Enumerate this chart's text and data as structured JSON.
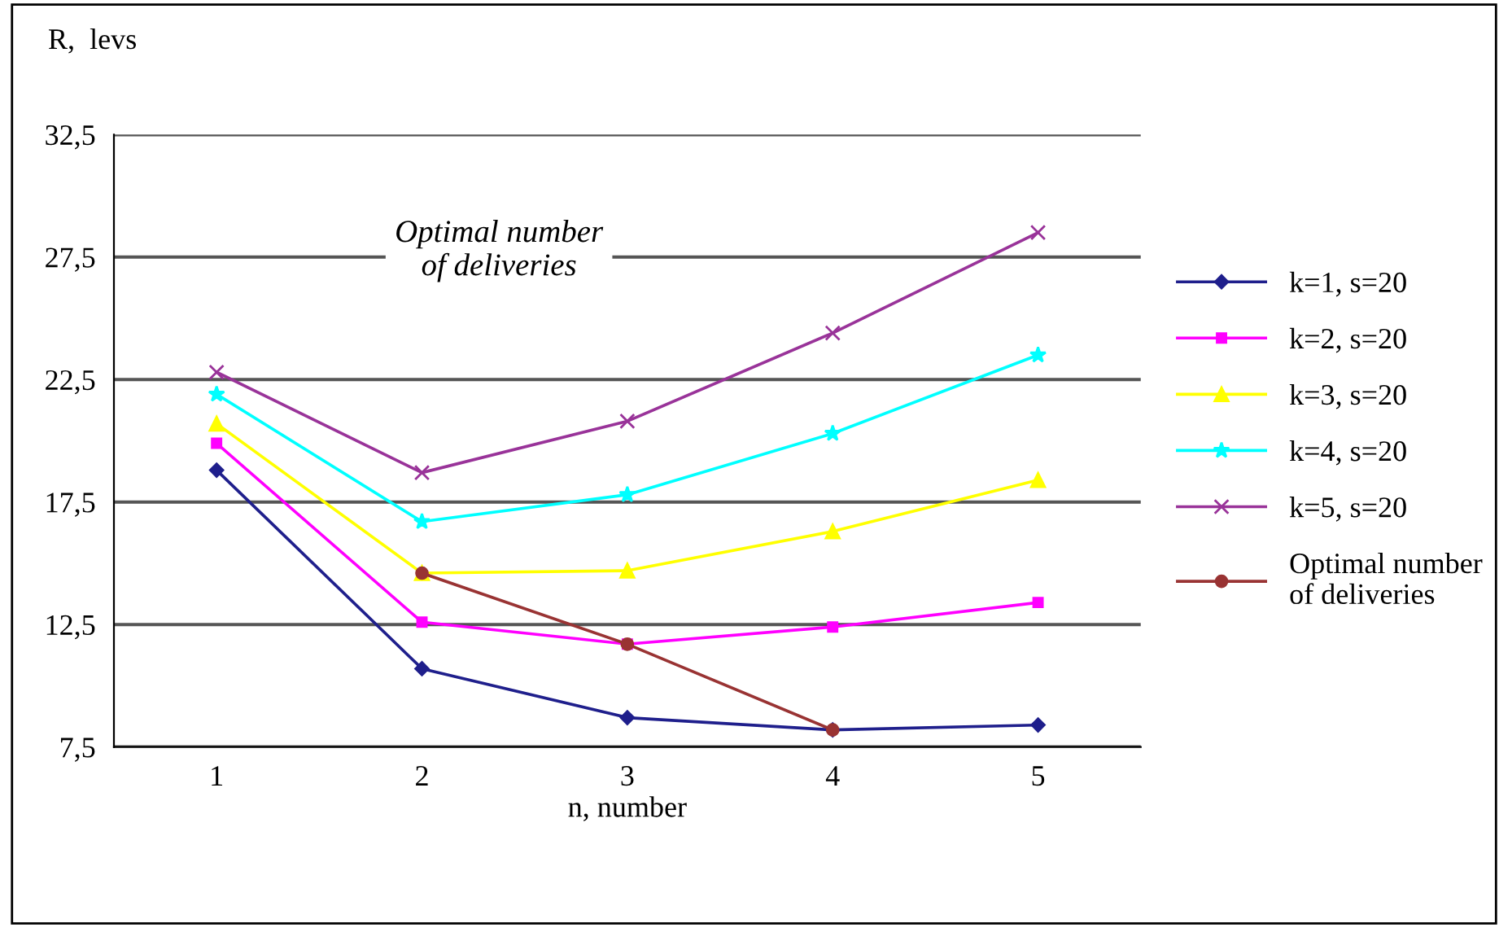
{
  "chart_data": {
    "type": "line",
    "xlabel": "n, number",
    "ylabel": "R,  levs",
    "categories": [
      "1",
      "2",
      "3",
      "4",
      "5"
    ],
    "series": [
      {
        "name": "k=1, s=20",
        "color": "#1f1f8c",
        "marker": "diamond",
        "values": [
          18.8,
          10.7,
          8.7,
          8.2,
          8.4
        ]
      },
      {
        "name": "k=2, s=20",
        "color": "#ff00ff",
        "marker": "square",
        "values": [
          19.9,
          12.6,
          11.7,
          12.4,
          13.4
        ]
      },
      {
        "name": "k=3, s=20",
        "color": "#ffff00",
        "marker": "triangle",
        "values": [
          20.7,
          14.6,
          14.7,
          16.3,
          18.4
        ]
      },
      {
        "name": "k=4, s=20",
        "color": "#00ffff",
        "marker": "star",
        "values": [
          21.9,
          16.7,
          17.8,
          20.3,
          23.5
        ]
      },
      {
        "name": "k=5, s=20",
        "color": "#993399",
        "marker": "cross",
        "values": [
          22.8,
          18.7,
          20.8,
          24.4,
          28.5
        ]
      },
      {
        "name": "Optimal number\nof deliveries",
        "color": "#993333",
        "marker": "circle",
        "values": [
          null,
          14.6,
          11.7,
          8.2,
          null
        ]
      }
    ],
    "ylim": [
      7.5,
      32.5
    ],
    "yticks": [
      {
        "value": 7.5,
        "label": "7,5"
      },
      {
        "value": 12.5,
        "label": "12,5"
      },
      {
        "value": 17.5,
        "label": "17,5"
      },
      {
        "value": 22.5,
        "label": "22,5"
      },
      {
        "value": 27.5,
        "label": "27,5"
      },
      {
        "value": 32.5,
        "label": "32,5"
      }
    ],
    "grid": "y",
    "legend": "right",
    "annotations": [
      "Optimal number\nof deliveries"
    ]
  }
}
